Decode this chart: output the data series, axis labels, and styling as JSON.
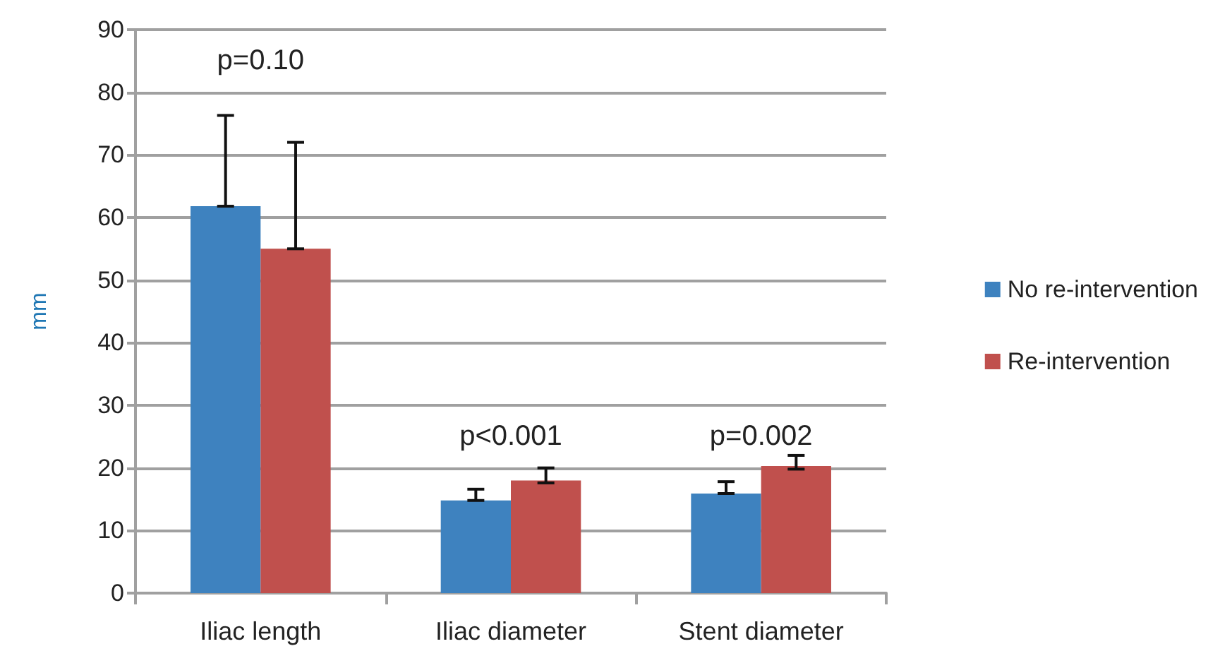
{
  "chart_data": {
    "type": "bar",
    "ylabel": "mm",
    "categories": [
      "Iliac length",
      "Iliac diameter",
      "Stent diameter"
    ],
    "series": [
      {
        "name": "No re-intervention",
        "color": "#3e82bf",
        "values": [
          61.8,
          14.8,
          15.9
        ],
        "errors": [
          [
            61.8,
            76.3
          ],
          [
            14.8,
            16.6
          ],
          [
            15.9,
            17.8
          ]
        ]
      },
      {
        "name": "Re-intervention",
        "color": "#c0504d",
        "values": [
          55,
          18,
          20.3
        ],
        "errors": [
          [
            55,
            72
          ],
          [
            17.6,
            20
          ],
          [
            19.8,
            22
          ]
        ]
      }
    ],
    "annotations": [
      "p=0.10",
      "p<0.001",
      "p=0.002"
    ],
    "ylim": [
      0,
      90
    ],
    "yticks": [
      0,
      10,
      20,
      30,
      40,
      50,
      60,
      70,
      80,
      90
    ],
    "grid": "y",
    "legend": "right"
  }
}
